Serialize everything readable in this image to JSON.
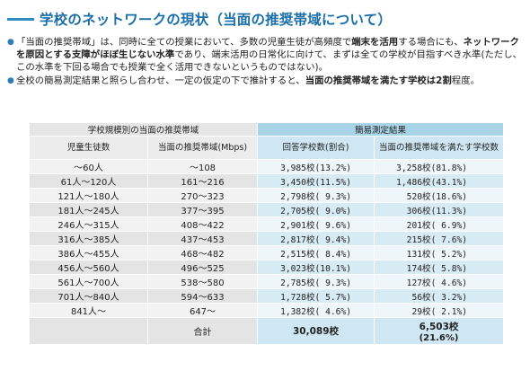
{
  "title": "学校のネットワークの現状（当面の推奨帯域について）",
  "bullet1": {
    "p1": "「当面の推奨帯域」は、同時に全ての授業において、多数の児童生徒が高頻度で",
    "p2": "端末を活用",
    "p3": "する場合にも、",
    "p4": "ネットワークを原因とする支障がほぼ生じない水準",
    "p5": "であり、端末活用の日常化に向けて、まずは全ての学校が目指すべき水準(ただし、この水準を下回る場合でも授業で全く活用できないというものではない)。"
  },
  "bullet2": {
    "p1": "全校の簡易測定結果と照らし合わせ、一定の仮定の下で推計すると、",
    "p2": "当面の推奨帯域を満たす学校は2割",
    "p3": "程度。"
  },
  "table": {
    "group_left": "学校規模別の当面の推奨帯域",
    "group_right": "簡易測定結果",
    "col1": "児童生徒数",
    "col2": "当面の推奨帯域(Mbps)",
    "col3": "回答学校数(割合)",
    "col4": "当面の推奨帯域を満たす学校数",
    "rows": [
      {
        "students": "～60人",
        "bandwidth": "～108",
        "responses": "3,985校(13.2%)",
        "meets": "3,258校(81.8%)"
      },
      {
        "students": "61人～120人",
        "bandwidth": "161～216",
        "responses": "3,450校(11.5%)",
        "meets": "1,486校(43.1%)"
      },
      {
        "students": "121人～180人",
        "bandwidth": "270～323",
        "responses": "2,798校( 9.3%)",
        "meets": "520校(18.6%)"
      },
      {
        "students": "181人～245人",
        "bandwidth": "377～395",
        "responses": "2,705校( 9.0%)",
        "meets": "306校(11.3%)"
      },
      {
        "students": "246人～315人",
        "bandwidth": "408～422",
        "responses": "2,901校( 9.6%)",
        "meets": "201校( 6.9%)"
      },
      {
        "students": "316人～385人",
        "bandwidth": "437～453",
        "responses": "2,817校( 9.4%)",
        "meets": "215校( 7.6%)"
      },
      {
        "students": "386人～455人",
        "bandwidth": "468～482",
        "responses": "2,515校( 8.4%)",
        "meets": "131校( 5.2%)"
      },
      {
        "students": "456人～560人",
        "bandwidth": "496～525",
        "responses": "3,023校(10.1%)",
        "meets": "174校( 5.8%)"
      },
      {
        "students": "561人～700人",
        "bandwidth": "538～580",
        "responses": "2,785校( 9.3%)",
        "meets": "127校( 4.6%)"
      },
      {
        "students": "701人～840人",
        "bandwidth": "594～633",
        "responses": "1,728校( 5.7%)",
        "meets": "56校( 3.2%)"
      },
      {
        "students": "841人～",
        "bandwidth": "647～",
        "responses": "1,382校( 4.6%)",
        "meets": "29校( 2.1%)"
      }
    ],
    "total_label": "合計",
    "total_responses": "30,089校",
    "total_meets": "6,503校",
    "total_meets_pct": "(21.6%)"
  }
}
